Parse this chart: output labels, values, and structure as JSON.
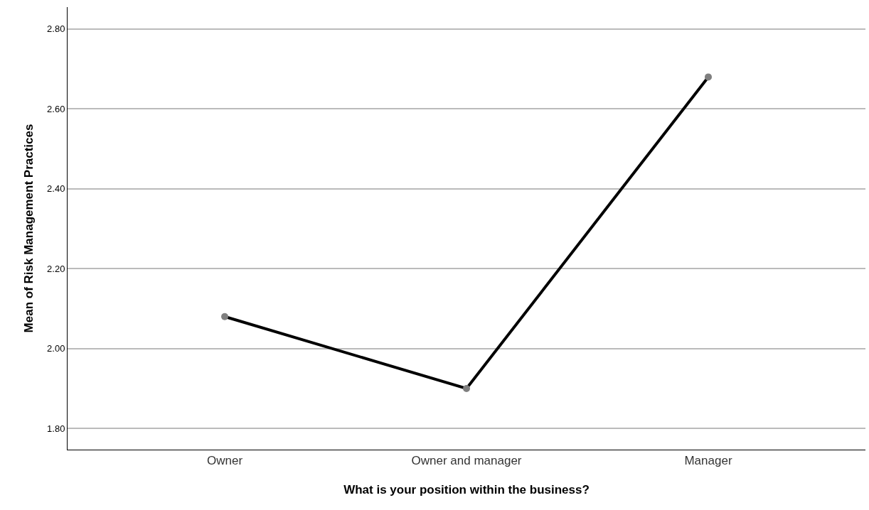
{
  "chart_data": {
    "type": "line",
    "xlabel": "What is your position within the business?",
    "ylabel": "Mean of Risk Management Practices",
    "categories": [
      "Owner",
      "Owner and manager",
      "Manager"
    ],
    "series": [
      {
        "color": "#000000",
        "values": [
          2.08,
          1.9,
          2.68
        ]
      }
    ],
    "ylim": [
      1.747,
      2.855
    ],
    "yticks": [
      {
        "value": 1.8,
        "label": "1.80"
      },
      {
        "value": 2.0,
        "label": "2.00"
      },
      {
        "value": 2.2,
        "label": "2.20"
      },
      {
        "value": 2.4,
        "label": "2.40"
      },
      {
        "value": 2.6,
        "label": "2.60"
      },
      {
        "value": 2.8,
        "label": "2.80"
      }
    ],
    "grid": "y",
    "marker": "circle",
    "line_style": "solid"
  }
}
